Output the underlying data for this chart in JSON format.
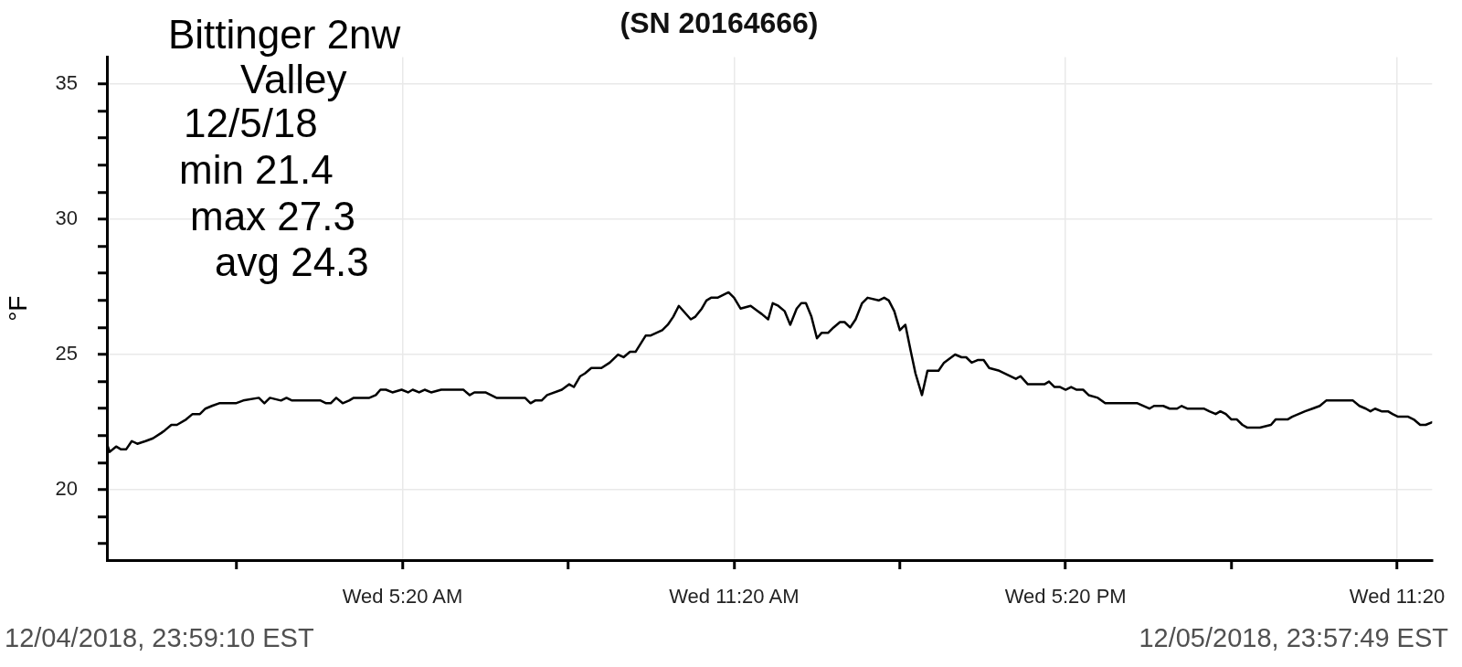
{
  "chart_data": {
    "type": "line",
    "title": "(SN 20164666)",
    "ylabel": "°F",
    "annotations": [
      "Bittinger 2nw",
      "Valley",
      "12/5/18",
      "min 21.4",
      "max 27.3",
      "avg 24.3",
      "12/04/2018, 23:59:10 EST",
      "12/05/2018, 23:57:49 EST"
    ],
    "x": [
      "2018-12-04T23:59",
      "2018-12-05T00:02",
      "2018-12-05T00:09",
      "2018-12-05T00:14",
      "2018-12-05T00:20",
      "2018-12-05T00:26",
      "2018-12-05T00:32",
      "2018-12-05T00:41",
      "2018-12-05T00:49",
      "2018-12-05T00:58",
      "2018-12-05T01:02",
      "2018-12-05T01:09",
      "2018-12-05T01:15",
      "2018-12-05T01:25",
      "2018-12-05T01:32",
      "2018-12-05T01:40",
      "2018-12-05T01:46",
      "2018-12-05T01:53",
      "2018-12-05T02:01",
      "2018-12-05T02:19",
      "2018-12-05T02:27",
      "2018-12-05T02:44",
      "2018-12-05T02:50",
      "2018-12-05T02:56",
      "2018-12-05T03:08",
      "2018-12-05T03:14",
      "2018-12-05T03:20",
      "2018-12-05T03:51",
      "2018-12-05T03:57",
      "2018-12-05T04:02",
      "2018-12-05T04:08",
      "2018-12-05T04:15",
      "2018-12-05T04:22",
      "2018-12-05T04:27",
      "2018-12-05T04:44",
      "2018-12-05T04:51",
      "2018-12-05T04:56",
      "2018-12-05T05:02",
      "2018-12-05T05:09",
      "2018-12-05T05:19",
      "2018-12-05T05:26",
      "2018-12-05T05:31",
      "2018-12-05T05:38",
      "2018-12-05T05:44",
      "2018-12-05T05:51",
      "2018-12-05T06:02",
      "2018-12-05T06:26",
      "2018-12-05T06:33",
      "2018-12-05T06:38",
      "2018-12-05T06:50",
      "2018-12-05T07:02",
      "2018-12-05T07:33",
      "2018-12-05T07:39",
      "2018-12-05T07:44",
      "2018-12-05T07:51",
      "2018-12-05T07:57",
      "2018-12-05T08:13",
      "2018-12-05T08:21",
      "2018-12-05T08:26",
      "2018-12-05T08:33",
      "2018-12-05T08:38",
      "2018-12-05T08:45",
      "2018-12-05T08:56",
      "2018-12-05T09:05",
      "2018-12-05T09:14",
      "2018-12-05T09:20",
      "2018-12-05T09:27",
      "2018-12-05T09:33",
      "2018-12-05T09:44",
      "2018-12-05T09:49",
      "2018-12-05T10:02",
      "2018-12-05T10:08",
      "2018-12-05T10:14",
      "2018-12-05T10:20",
      "2018-12-05T10:33",
      "2018-12-05T10:38",
      "2018-12-05T10:45",
      "2018-12-05T10:50",
      "2018-12-05T10:55",
      "2018-12-05T11:02",
      "2018-12-05T11:08",
      "2018-12-05T11:14",
      "2018-12-05T11:20",
      "2018-12-05T11:27",
      "2018-12-05T11:38",
      "2018-12-05T11:46",
      "2018-12-05T11:50",
      "2018-12-05T11:57",
      "2018-12-05T12:02",
      "2018-12-05T12:08",
      "2018-12-05T12:15",
      "2018-12-05T12:21",
      "2018-12-05T12:28",
      "2018-12-05T12:33",
      "2018-12-05T12:38",
      "2018-12-05T12:44",
      "2018-12-05T12:50",
      "2018-12-05T12:55",
      "2018-12-05T13:02",
      "2018-12-05T13:08",
      "2018-12-05T13:15",
      "2018-12-05T13:20",
      "2018-12-05T13:26",
      "2018-12-05T13:32",
      "2018-12-05T13:39",
      "2018-12-05T13:45",
      "2018-12-05T13:57",
      "2018-12-05T14:03",
      "2018-12-05T14:08",
      "2018-12-05T14:14",
      "2018-12-05T14:20",
      "2018-12-05T14:26",
      "2018-12-05T14:32",
      "2018-12-05T14:37",
      "2018-12-05T14:44",
      "2018-12-05T14:50",
      "2018-12-05T15:02",
      "2018-12-05T15:08",
      "2018-12-05T15:20",
      "2018-12-05T15:27",
      "2018-12-05T15:32",
      "2018-12-05T15:38",
      "2018-12-05T15:45",
      "2018-12-05T15:51",
      "2018-12-05T15:57",
      "2018-12-05T16:08",
      "2018-12-05T16:26",
      "2018-12-05T16:31",
      "2018-12-05T16:39",
      "2018-12-05T16:57",
      "2018-12-05T17:02",
      "2018-12-05T17:08",
      "2018-12-05T17:14",
      "2018-12-05T17:20",
      "2018-12-05T17:26",
      "2018-12-05T17:32",
      "2018-12-05T17:39",
      "2018-12-05T17:45",
      "2018-12-05T17:55",
      "2018-12-05T18:03",
      "2018-12-05T18:38",
      "2018-12-05T18:51",
      "2018-12-05T18:56",
      "2018-12-05T19:06",
      "2018-12-05T19:13",
      "2018-12-05T19:21",
      "2018-12-05T19:26",
      "2018-12-05T19:32",
      "2018-12-05T19:50",
      "2018-12-05T19:56",
      "2018-12-05T20:03",
      "2018-12-05T20:08",
      "2018-12-05T20:14",
      "2018-12-05T20:20",
      "2018-12-05T20:26",
      "2018-12-05T20:32",
      "2018-12-05T20:37",
      "2018-12-05T20:51",
      "2018-12-05T21:03",
      "2018-12-05T21:08",
      "2018-12-05T21:21",
      "2018-12-05T21:26",
      "2018-12-05T21:33",
      "2018-12-05T21:40",
      "2018-12-05T21:48",
      "2018-12-05T21:56",
      "2018-12-05T22:03",
      "2018-12-05T22:32",
      "2018-12-05T22:39",
      "2018-12-05T22:46",
      "2018-12-05T22:51",
      "2018-12-05T22:56",
      "2018-12-05T23:03",
      "2018-12-05T23:10",
      "2018-12-05T23:15",
      "2018-12-05T23:21",
      "2018-12-05T23:32",
      "2018-12-05T23:38",
      "2018-12-05T23:45",
      "2018-12-05T23:51",
      "2018-12-05T23:58"
    ],
    "values": [
      21.7,
      21.4,
      21.6,
      21.5,
      21.5,
      21.8,
      21.7,
      21.8,
      21.9,
      22.1,
      22.2,
      22.4,
      22.4,
      22.6,
      22.8,
      22.8,
      23.0,
      23.1,
      23.2,
      23.2,
      23.3,
      23.4,
      23.2,
      23.4,
      23.3,
      23.4,
      23.3,
      23.3,
      23.2,
      23.2,
      23.4,
      23.2,
      23.3,
      23.4,
      23.4,
      23.5,
      23.7,
      23.7,
      23.6,
      23.7,
      23.6,
      23.7,
      23.6,
      23.7,
      23.6,
      23.7,
      23.7,
      23.5,
      23.6,
      23.6,
      23.4,
      23.4,
      23.2,
      23.3,
      23.3,
      23.5,
      23.7,
      23.9,
      23.8,
      24.2,
      24.3,
      24.5,
      24.5,
      24.7,
      25.0,
      24.9,
      25.1,
      25.1,
      25.7,
      25.7,
      25.9,
      26.1,
      26.4,
      26.8,
      26.3,
      26.4,
      26.7,
      27.0,
      27.1,
      27.1,
      27.2,
      27.3,
      27.1,
      26.7,
      26.8,
      26.6,
      26.5,
      26.3,
      26.9,
      26.8,
      26.6,
      26.1,
      26.7,
      26.9,
      26.9,
      26.4,
      25.6,
      25.8,
      25.8,
      26.0,
      26.2,
      26.2,
      26.0,
      26.3,
      26.9,
      27.1,
      27.0,
      27.1,
      27.0,
      26.6,
      25.9,
      26.1,
      25.1,
      24.3,
      23.5,
      24.4,
      24.4,
      24.7,
      25.0,
      24.9,
      24.9,
      24.7,
      24.8,
      24.8,
      24.5,
      24.4,
      24.1,
      24.2,
      23.9,
      23.9,
      24.0,
      23.8,
      23.8,
      23.7,
      23.8,
      23.7,
      23.7,
      23.5,
      23.4,
      23.2,
      23.2,
      23.0,
      23.1,
      23.1,
      23.0,
      23.0,
      23.1,
      23.0,
      23.0,
      22.9,
      22.8,
      22.9,
      22.8,
      22.6,
      22.6,
      22.4,
      22.3,
      22.3,
      22.4,
      22.6,
      22.6,
      22.7,
      22.8,
      22.9,
      23.0,
      23.1,
      23.3,
      23.3,
      23.1,
      23.0,
      22.9,
      23.0,
      22.9,
      22.9,
      22.8,
      22.7,
      22.7,
      22.6,
      22.4,
      22.4,
      22.5
    ],
    "color": "#000000",
    "xlim": [
      "2018-12-04T23:59",
      "2018-12-05T23:58"
    ],
    "xticks": [
      {
        "value": "2018-12-05T02:20",
        "label": null
      },
      {
        "value": "2018-12-05T05:20",
        "label": "Wed 5:20 AM"
      },
      {
        "value": "2018-12-05T08:20",
        "label": null
      },
      {
        "value": "2018-12-05T11:20",
        "label": "Wed 11:20 AM"
      },
      {
        "value": "2018-12-05T14:20",
        "label": null
      },
      {
        "value": "2018-12-05T17:20",
        "label": "Wed 5:20 PM"
      },
      {
        "value": "2018-12-05T20:20",
        "label": null
      },
      {
        "value": "2018-12-05T23:20",
        "label": "Wed 11:20"
      }
    ],
    "ylim": [
      17.4,
      36
    ],
    "yticks": [
      {
        "value": 18,
        "label": null
      },
      {
        "value": 19,
        "label": null
      },
      20,
      {
        "value": 21,
        "label": null
      },
      {
        "value": 22,
        "label": null
      },
      {
        "value": 23,
        "label": null
      },
      {
        "value": 24,
        "label": null
      },
      25,
      {
        "value": 26,
        "label": null
      },
      {
        "value": 27,
        "label": null
      },
      {
        "value": 28,
        "label": null
      },
      {
        "value": 29,
        "label": null
      },
      30,
      {
        "value": 31,
        "label": null
      },
      {
        "value": 32,
        "label": null
      },
      {
        "value": 33,
        "label": null
      },
      {
        "value": 34,
        "label": null
      },
      35
    ],
    "grid": true
  }
}
